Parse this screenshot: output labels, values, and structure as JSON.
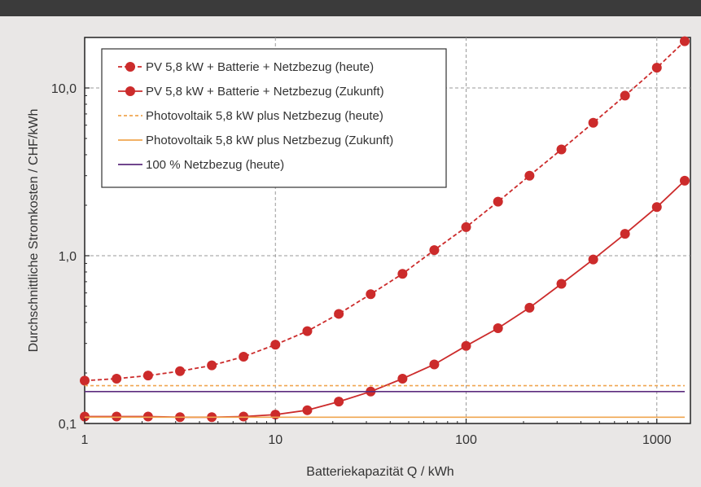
{
  "chart_data": {
    "type": "line",
    "x_scale": "log",
    "y_scale": "log",
    "xlim": [
      1,
      1500
    ],
    "ylim": [
      0.1,
      20
    ],
    "xlabel": "Batteriekapazität Q / kWh",
    "ylabel": "Durchschnittliche Stromkosten / CHF/kWh",
    "x_ticks": [
      {
        "value": 1,
        "label": "1"
      },
      {
        "value": 10,
        "label": "10"
      },
      {
        "value": 100,
        "label": "100"
      },
      {
        "value": 1000,
        "label": "1000"
      }
    ],
    "y_ticks": [
      {
        "value": 0.1,
        "label": "0,1"
      },
      {
        "value": 1,
        "label": "1,0"
      },
      {
        "value": 10,
        "label": "10,0"
      }
    ],
    "grid": true,
    "legend_position": "top-left",
    "colors": {
      "battery_today": "#cc2b2b",
      "battery_future": "#cc2b2b",
      "pv_today": "#f0a650",
      "pv_future": "#f0a650",
      "grid_today": "#5c2b7d"
    },
    "series": [
      {
        "key": "battery_today",
        "name": "PV 5,8 kW + Batterie + Netzbezug (heute)",
        "style": "dashed-markers",
        "x": [
          1,
          1.47,
          2.15,
          3.16,
          4.64,
          6.81,
          10,
          14.7,
          21.5,
          31.6,
          46.4,
          68.1,
          100,
          147,
          215,
          316,
          464,
          681,
          1000,
          1400
        ],
        "y": [
          0.18,
          0.185,
          0.193,
          0.205,
          0.222,
          0.25,
          0.295,
          0.355,
          0.45,
          0.59,
          0.78,
          1.08,
          1.48,
          2.1,
          3.0,
          4.3,
          6.2,
          9.0,
          13.2,
          19.0
        ]
      },
      {
        "key": "battery_future",
        "name": "PV 5,8 kW + Batterie + Netzbezug (Zukunft)",
        "style": "solid-markers",
        "x": [
          1,
          1.47,
          2.15,
          3.16,
          4.64,
          6.81,
          10,
          14.7,
          21.5,
          31.6,
          46.4,
          68.1,
          100,
          147,
          215,
          316,
          464,
          681,
          1000,
          1400
        ],
        "y": [
          0.11,
          0.11,
          0.11,
          0.109,
          0.109,
          0.11,
          0.113,
          0.12,
          0.135,
          0.155,
          0.185,
          0.225,
          0.29,
          0.37,
          0.49,
          0.68,
          0.95,
          1.35,
          1.95,
          2.8
        ]
      },
      {
        "key": "pv_today",
        "name": "Photovoltaik 5,8 kW plus Netzbezug (heute)",
        "style": "dashed",
        "x": [
          1,
          1400
        ],
        "y": [
          0.168,
          0.168
        ]
      },
      {
        "key": "pv_future",
        "name": "Photovoltaik 5,8 kW plus Netzbezug (Zukunft)",
        "style": "solid",
        "x": [
          1,
          1400
        ],
        "y": [
          0.109,
          0.109
        ]
      },
      {
        "key": "grid_today",
        "name": "100 % Netzbezug (heute)",
        "style": "solid",
        "x": [
          1,
          1400
        ],
        "y": [
          0.155,
          0.155
        ]
      }
    ]
  }
}
